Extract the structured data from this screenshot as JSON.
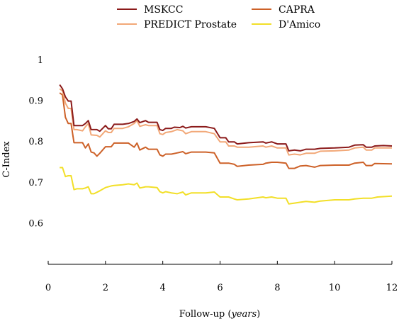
{
  "chart_data": {
    "type": "line",
    "xlabel": "Follow-up",
    "xlabel_unit": "years",
    "ylabel": "C-Index",
    "xlim": [
      0,
      12
    ],
    "ylim": [
      0.5,
      1.0
    ],
    "x_ticks": [
      0,
      2,
      4,
      6,
      8,
      10,
      12
    ],
    "y_ticks": [
      0.6,
      0.7,
      0.8,
      0.9,
      1.0
    ],
    "x_tick_labels": [
      "0",
      "2",
      "4",
      "6",
      "8",
      "10",
      "12"
    ],
    "y_tick_labels": [
      "0.6",
      "0.7",
      "0.8",
      "0.9",
      "1"
    ],
    "grid": false,
    "legend_position": "top",
    "series": [
      {
        "name": "MSKCC",
        "color": "#8b1a1a",
        "points": [
          [
            0.4,
            0.94
          ],
          [
            0.5,
            0.93
          ],
          [
            0.6,
            0.91
          ],
          [
            0.7,
            0.9
          ],
          [
            0.8,
            0.9
          ],
          [
            0.9,
            0.84
          ],
          [
            1.0,
            0.84
          ],
          [
            1.2,
            0.84
          ],
          [
            1.3,
            0.845
          ],
          [
            1.4,
            0.852
          ],
          [
            1.5,
            0.83
          ],
          [
            1.7,
            0.83
          ],
          [
            1.8,
            0.826
          ],
          [
            2.0,
            0.84
          ],
          [
            2.1,
            0.832
          ],
          [
            2.2,
            0.832
          ],
          [
            2.3,
            0.843
          ],
          [
            2.6,
            0.843
          ],
          [
            2.8,
            0.845
          ],
          [
            3.0,
            0.85
          ],
          [
            3.1,
            0.856
          ],
          [
            3.2,
            0.847
          ],
          [
            3.4,
            0.852
          ],
          [
            3.5,
            0.848
          ],
          [
            3.6,
            0.848
          ],
          [
            3.8,
            0.848
          ],
          [
            3.9,
            0.83
          ],
          [
            4.0,
            0.828
          ],
          [
            4.1,
            0.833
          ],
          [
            4.3,
            0.833
          ],
          [
            4.4,
            0.836
          ],
          [
            4.6,
            0.835
          ],
          [
            4.7,
            0.838
          ],
          [
            4.8,
            0.834
          ],
          [
            5.0,
            0.837
          ],
          [
            5.5,
            0.837
          ],
          [
            5.8,
            0.833
          ],
          [
            6.0,
            0.81
          ],
          [
            6.2,
            0.81
          ],
          [
            6.3,
            0.8
          ],
          [
            6.5,
            0.8
          ],
          [
            6.6,
            0.795
          ],
          [
            7.0,
            0.798
          ],
          [
            7.5,
            0.8
          ],
          [
            7.6,
            0.797
          ],
          [
            7.8,
            0.8
          ],
          [
            8.0,
            0.795
          ],
          [
            8.3,
            0.795
          ],
          [
            8.4,
            0.778
          ],
          [
            8.6,
            0.78
          ],
          [
            8.8,
            0.778
          ],
          [
            9.0,
            0.782
          ],
          [
            9.3,
            0.782
          ],
          [
            9.5,
            0.784
          ],
          [
            10.0,
            0.785
          ],
          [
            10.5,
            0.787
          ],
          [
            10.7,
            0.792
          ],
          [
            11.0,
            0.793
          ],
          [
            11.1,
            0.787
          ],
          [
            11.3,
            0.787
          ],
          [
            11.4,
            0.79
          ],
          [
            11.7,
            0.791
          ],
          [
            12.0,
            0.79
          ]
        ]
      },
      {
        "name": "CAPRA",
        "color": "#cd6128",
        "points": [
          [
            0.4,
            0.92
          ],
          [
            0.5,
            0.915
          ],
          [
            0.6,
            0.86
          ],
          [
            0.7,
            0.845
          ],
          [
            0.8,
            0.845
          ],
          [
            0.9,
            0.798
          ],
          [
            1.0,
            0.798
          ],
          [
            1.2,
            0.798
          ],
          [
            1.3,
            0.785
          ],
          [
            1.4,
            0.795
          ],
          [
            1.5,
            0.775
          ],
          [
            1.6,
            0.773
          ],
          [
            1.7,
            0.765
          ],
          [
            1.8,
            0.772
          ],
          [
            2.0,
            0.788
          ],
          [
            2.2,
            0.788
          ],
          [
            2.3,
            0.797
          ],
          [
            2.6,
            0.797
          ],
          [
            2.8,
            0.797
          ],
          [
            3.0,
            0.787
          ],
          [
            3.1,
            0.797
          ],
          [
            3.2,
            0.78
          ],
          [
            3.4,
            0.787
          ],
          [
            3.5,
            0.782
          ],
          [
            3.8,
            0.782
          ],
          [
            3.9,
            0.768
          ],
          [
            4.0,
            0.765
          ],
          [
            4.1,
            0.77
          ],
          [
            4.3,
            0.77
          ],
          [
            4.5,
            0.773
          ],
          [
            4.7,
            0.776
          ],
          [
            4.8,
            0.771
          ],
          [
            5.0,
            0.775
          ],
          [
            5.5,
            0.775
          ],
          [
            5.8,
            0.773
          ],
          [
            6.0,
            0.748
          ],
          [
            6.3,
            0.748
          ],
          [
            6.5,
            0.745
          ],
          [
            6.6,
            0.74
          ],
          [
            7.0,
            0.743
          ],
          [
            7.5,
            0.745
          ],
          [
            7.6,
            0.748
          ],
          [
            7.8,
            0.75
          ],
          [
            8.0,
            0.75
          ],
          [
            8.3,
            0.748
          ],
          [
            8.4,
            0.735
          ],
          [
            8.6,
            0.735
          ],
          [
            8.8,
            0.741
          ],
          [
            9.0,
            0.742
          ],
          [
            9.3,
            0.738
          ],
          [
            9.5,
            0.742
          ],
          [
            10.0,
            0.743
          ],
          [
            10.5,
            0.743
          ],
          [
            10.7,
            0.748
          ],
          [
            11.0,
            0.75
          ],
          [
            11.1,
            0.742
          ],
          [
            11.3,
            0.742
          ],
          [
            11.4,
            0.747
          ],
          [
            12.0,
            0.746
          ]
        ]
      },
      {
        "name": "PREDICT Prostate",
        "color": "#f2a878",
        "points": [
          [
            0.4,
            0.93
          ],
          [
            0.5,
            0.925
          ],
          [
            0.6,
            0.895
          ],
          [
            0.7,
            0.882
          ],
          [
            0.8,
            0.882
          ],
          [
            0.9,
            0.83
          ],
          [
            1.0,
            0.83
          ],
          [
            1.2,
            0.827
          ],
          [
            1.3,
            0.837
          ],
          [
            1.4,
            0.845
          ],
          [
            1.5,
            0.817
          ],
          [
            1.7,
            0.816
          ],
          [
            1.8,
            0.812
          ],
          [
            2.0,
            0.827
          ],
          [
            2.1,
            0.823
          ],
          [
            2.2,
            0.823
          ],
          [
            2.3,
            0.833
          ],
          [
            2.6,
            0.833
          ],
          [
            2.8,
            0.837
          ],
          [
            3.0,
            0.845
          ],
          [
            3.1,
            0.852
          ],
          [
            3.2,
            0.838
          ],
          [
            3.4,
            0.842
          ],
          [
            3.5,
            0.84
          ],
          [
            3.8,
            0.84
          ],
          [
            3.9,
            0.82
          ],
          [
            4.0,
            0.818
          ],
          [
            4.1,
            0.823
          ],
          [
            4.3,
            0.825
          ],
          [
            4.5,
            0.83
          ],
          [
            4.7,
            0.827
          ],
          [
            4.8,
            0.82
          ],
          [
            5.0,
            0.825
          ],
          [
            5.5,
            0.825
          ],
          [
            5.8,
            0.82
          ],
          [
            6.0,
            0.8
          ],
          [
            6.2,
            0.8
          ],
          [
            6.3,
            0.79
          ],
          [
            6.5,
            0.79
          ],
          [
            6.6,
            0.787
          ],
          [
            7.0,
            0.787
          ],
          [
            7.5,
            0.79
          ],
          [
            7.6,
            0.787
          ],
          [
            7.8,
            0.79
          ],
          [
            8.0,
            0.785
          ],
          [
            8.3,
            0.785
          ],
          [
            8.4,
            0.768
          ],
          [
            8.6,
            0.77
          ],
          [
            8.8,
            0.768
          ],
          [
            9.0,
            0.772
          ],
          [
            9.3,
            0.772
          ],
          [
            9.5,
            0.777
          ],
          [
            10.0,
            0.778
          ],
          [
            10.5,
            0.78
          ],
          [
            10.7,
            0.785
          ],
          [
            11.0,
            0.787
          ],
          [
            11.1,
            0.78
          ],
          [
            11.3,
            0.78
          ],
          [
            11.4,
            0.785
          ],
          [
            12.0,
            0.785
          ]
        ]
      },
      {
        "name": "D'Amico",
        "color": "#f2df28",
        "points": [
          [
            0.4,
            0.737
          ],
          [
            0.5,
            0.737
          ],
          [
            0.6,
            0.715
          ],
          [
            0.7,
            0.717
          ],
          [
            0.8,
            0.717
          ],
          [
            0.9,
            0.683
          ],
          [
            1.0,
            0.685
          ],
          [
            1.2,
            0.685
          ],
          [
            1.3,
            0.687
          ],
          [
            1.4,
            0.69
          ],
          [
            1.5,
            0.673
          ],
          [
            1.6,
            0.673
          ],
          [
            1.8,
            0.68
          ],
          [
            2.0,
            0.688
          ],
          [
            2.2,
            0.692
          ],
          [
            2.3,
            0.693
          ],
          [
            2.6,
            0.695
          ],
          [
            2.8,
            0.697
          ],
          [
            3.0,
            0.695
          ],
          [
            3.1,
            0.699
          ],
          [
            3.2,
            0.687
          ],
          [
            3.4,
            0.69
          ],
          [
            3.5,
            0.69
          ],
          [
            3.8,
            0.688
          ],
          [
            3.9,
            0.678
          ],
          [
            4.0,
            0.675
          ],
          [
            4.1,
            0.678
          ],
          [
            4.3,
            0.675
          ],
          [
            4.5,
            0.673
          ],
          [
            4.7,
            0.677
          ],
          [
            4.8,
            0.67
          ],
          [
            5.0,
            0.675
          ],
          [
            5.5,
            0.675
          ],
          [
            5.8,
            0.677
          ],
          [
            6.0,
            0.665
          ],
          [
            6.3,
            0.665
          ],
          [
            6.5,
            0.66
          ],
          [
            6.6,
            0.658
          ],
          [
            7.0,
            0.66
          ],
          [
            7.5,
            0.665
          ],
          [
            7.6,
            0.663
          ],
          [
            7.8,
            0.665
          ],
          [
            8.0,
            0.662
          ],
          [
            8.3,
            0.662
          ],
          [
            8.4,
            0.648
          ],
          [
            8.6,
            0.65
          ],
          [
            8.8,
            0.652
          ],
          [
            9.0,
            0.654
          ],
          [
            9.3,
            0.652
          ],
          [
            9.5,
            0.655
          ],
          [
            10.0,
            0.658
          ],
          [
            10.5,
            0.658
          ],
          [
            10.7,
            0.66
          ],
          [
            11.0,
            0.662
          ],
          [
            11.3,
            0.662
          ],
          [
            11.5,
            0.665
          ],
          [
            12.0,
            0.667
          ]
        ]
      }
    ]
  }
}
